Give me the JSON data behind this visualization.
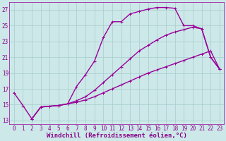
{
  "xlabel": "Windchill (Refroidissement éolien,°C)",
  "bg_color": "#cce8e8",
  "line_color": "#990099",
  "grid_color": "#a8cccc",
  "xlim": [
    -0.5,
    23.5
  ],
  "ylim": [
    12.5,
    28.0
  ],
  "xticks": [
    0,
    1,
    2,
    3,
    4,
    5,
    6,
    7,
    8,
    9,
    10,
    11,
    12,
    13,
    14,
    15,
    16,
    17,
    18,
    19,
    20,
    21,
    22,
    23
  ],
  "yticks": [
    13,
    15,
    17,
    19,
    21,
    23,
    25,
    27
  ],
  "line1_x": [
    0,
    1,
    2,
    3,
    4,
    5,
    6,
    7,
    8,
    9,
    10,
    11,
    12,
    13,
    14,
    15,
    16,
    17,
    18,
    19,
    20,
    21,
    22,
    23
  ],
  "line1_y": [
    16.5,
    14.9,
    13.2,
    14.7,
    14.8,
    14.9,
    15.1,
    17.3,
    18.8,
    20.5,
    23.5,
    25.5,
    25.5,
    26.5,
    26.8,
    27.1,
    27.3,
    27.3,
    27.2,
    25.0,
    25.0,
    24.6,
    21.0,
    19.5
  ],
  "line2_x": [
    2,
    3,
    4,
    5,
    6,
    7,
    8,
    9,
    10,
    11,
    12,
    13,
    14,
    15,
    16,
    17,
    18,
    19,
    20,
    21,
    22,
    23
  ],
  "line2_y": [
    13.2,
    14.7,
    14.8,
    14.9,
    15.1,
    15.3,
    15.6,
    16.0,
    16.5,
    17.0,
    17.5,
    18.0,
    18.5,
    19.0,
    19.4,
    19.8,
    20.2,
    20.6,
    21.0,
    21.4,
    21.8,
    19.5
  ],
  "line3_x": [
    2,
    3,
    4,
    5,
    6,
    7,
    8,
    9,
    10,
    11,
    12,
    13,
    14,
    15,
    16,
    17,
    18,
    19,
    20,
    21,
    22,
    23
  ],
  "line3_y": [
    13.2,
    14.7,
    14.8,
    14.9,
    15.1,
    15.5,
    16.0,
    16.8,
    17.8,
    18.8,
    19.8,
    20.8,
    21.8,
    22.5,
    23.2,
    23.8,
    24.2,
    24.5,
    24.8,
    24.6,
    21.0,
    19.5
  ],
  "marker_size": 2.5,
  "line_width": 1.0,
  "font_color": "#880088",
  "font_size": 5.5,
  "label_font_size": 6.5
}
